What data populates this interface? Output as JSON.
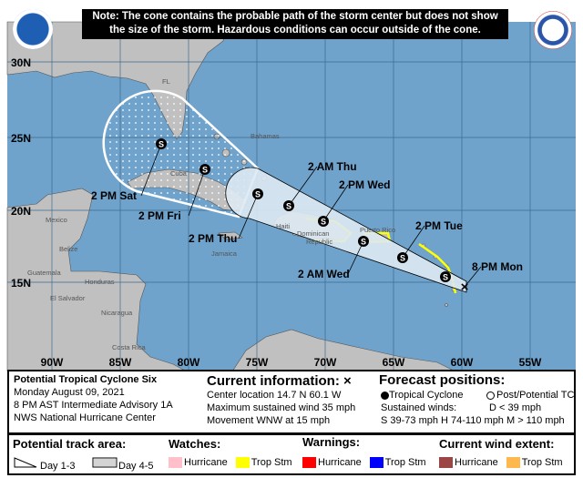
{
  "note": {
    "line1": "Note: The cone contains the probable path of the storm center but does not show",
    "line2": "the size of the storm. Hazardous conditions can occur outside of the cone."
  },
  "logos": {
    "left": "NOAA",
    "right": "NATIONAL WEATHER SERVICE"
  },
  "grid": {
    "lat_labels": [
      "30N",
      "25N",
      "20N",
      "15N"
    ],
    "lon_labels": [
      "90W",
      "85W",
      "80W",
      "75W",
      "70W",
      "65W",
      "60W",
      "55W"
    ]
  },
  "places": {
    "fl": "FL",
    "bahamas": "Bahamas",
    "cuba": "Cuba",
    "mexico": "Mexico",
    "haiti": "Haiti",
    "dominican": "Dominican",
    "republic": "Republic",
    "puerto_rico": "Puerto Rico",
    "jamaica": "Jamaica",
    "belize": "Belize",
    "guatemala": "Guatemala",
    "honduras": "Honduras",
    "el_salvador": "El Salvador",
    "nicaragua": "Nicaragua",
    "costa_rica": "Costa Rica"
  },
  "forecast_points": [
    {
      "label": "8 PM Mon",
      "symbol": "X"
    },
    {
      "label": "",
      "symbol": "S"
    },
    {
      "label": "2 PM Tue",
      "symbol": "S"
    },
    {
      "label": "2 AM Wed",
      "symbol": "S"
    },
    {
      "label": "2 PM Wed",
      "symbol": "S"
    },
    {
      "label": "2 AM Thu",
      "symbol": "S"
    },
    {
      "label": "2 PM Thu",
      "symbol": "S"
    },
    {
      "label": "2 PM Fri",
      "symbol": "S"
    },
    {
      "label": "2 PM Sat",
      "symbol": "S"
    }
  ],
  "info": {
    "storm_name": "Potential Tropical Cyclone Six",
    "date": "Monday August 09, 2021",
    "advisory": "8 PM AST Intermediate Advisory 1A",
    "agency": "NWS National Hurricane Center",
    "current_title": "Current information: ×",
    "center": "Center location 14.7 N 60.1 W",
    "wind": "Maximum sustained wind 35 mph",
    "movement": "Movement WNW at 15 mph",
    "forecast_title": "Forecast positions:",
    "tc": "Tropical Cyclone",
    "post_tc": "Post/Potential TC",
    "sustained": "Sustained winds:",
    "d": "D < 39 mph",
    "shm": "S 39-73 mph  H 74-110 mph  M > 110 mph"
  },
  "legend": {
    "track_title": "Potential track area:",
    "day13": "Day 1-3",
    "day45": "Day 4-5",
    "watches_title": "Watches:",
    "warnings_title": "Warnings:",
    "wind_title": "Current wind extent:",
    "hurricane": "Hurricane",
    "trop_stm": "Trop Stm",
    "colors": {
      "watch_hurricane": "#ffc0cb",
      "watch_trop": "#ffff00",
      "warn_hurricane": "#ff0000",
      "warn_trop": "#0000ff",
      "wind_hurricane": "#9b4545",
      "wind_trop": "#ffb84d"
    }
  },
  "colors": {
    "ocean": "#6fa3cc",
    "land": "#c0c0c0",
    "cone": "#dde9f3"
  }
}
